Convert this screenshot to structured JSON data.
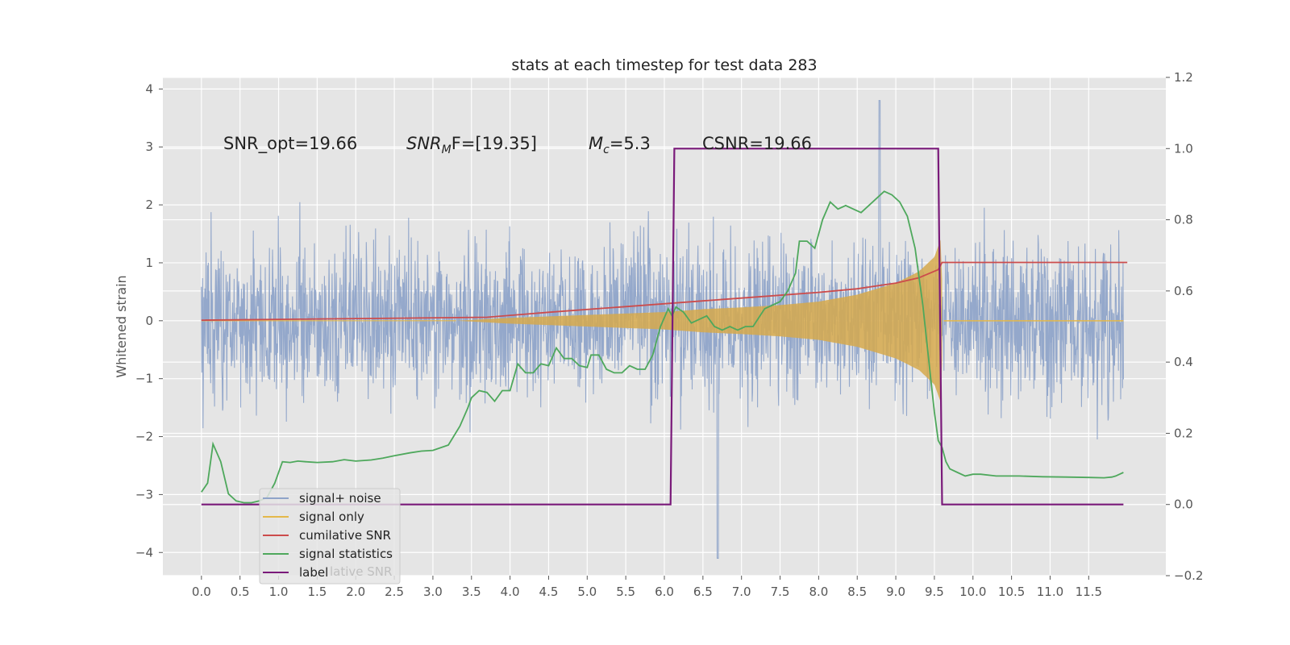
{
  "chart_data": {
    "type": "line",
    "title": "stats at each timestep for test data 283",
    "ylabel": "Whitened strain",
    "xlim": [
      -0.5,
      12.5
    ],
    "ylim": [
      -4.4,
      4.2
    ],
    "y2lim": [
      -0.2,
      1.2
    ],
    "grid": true,
    "x_ticks": [
      "0.0",
      "0.5",
      "1.0",
      "1.5",
      "2.0",
      "2.5",
      "3.0",
      "3.5",
      "4.0",
      "4.5",
      "5.0",
      "5.5",
      "6.0",
      "6.5",
      "7.0",
      "7.5",
      "8.0",
      "8.5",
      "9.0",
      "9.5",
      "10.0",
      "10.5",
      "11.0",
      "11.5"
    ],
    "y_ticks": [
      "4",
      "3",
      "2",
      "1",
      "0",
      "−1",
      "−2",
      "−3",
      "−4"
    ],
    "y2_ticks": [
      "1.2",
      "1.0",
      "0.8",
      "0.6",
      "0.4",
      "0.2",
      "0.0",
      "−0.2"
    ],
    "annotations": {
      "snr_opt": "SNR_opt=19.66",
      "snr_mf_prefix": "SNR",
      "snr_mf_sub": "M",
      "snr_mf_suffix": "F=[19.35]",
      "mc_prefix": "M",
      "mc_sub": "c",
      "mc_suffix": "=5.3",
      "csnr": "CSNR=19.66"
    },
    "legend": {
      "placement": "lower-left",
      "entries": [
        "signal+ noise",
        "signal only",
        "cumilative SNR",
        "signal statistics",
        "label"
      ],
      "overlapped_text": "lative SNR"
    },
    "series": [
      {
        "name": "signal+ noise",
        "axis": "left",
        "color": "#8fa4c9",
        "description": "whitened noisy strain, approx ±2 envelope, peaks near 3.8 at t≈8.8 and dip to −4.1 at t≈6.7"
      },
      {
        "name": "signal only",
        "axis": "left",
        "color": "#e4b84a",
        "envelope": {
          "t": [
            3.3,
            4.0,
            5.0,
            6.0,
            6.5,
            7.0,
            7.5,
            8.0,
            8.5,
            9.0,
            9.3,
            9.5,
            9.58,
            9.62,
            12.0
          ],
          "amp": [
            0.0,
            0.05,
            0.1,
            0.15,
            0.2,
            0.23,
            0.27,
            0.33,
            0.45,
            0.65,
            0.85,
            1.1,
            1.4,
            0.0,
            0.0
          ]
        }
      },
      {
        "name": "cumilative SNR",
        "axis": "right",
        "color": "#cc4c4c",
        "t": [
          0.0,
          3.7,
          4.5,
          5.5,
          6.5,
          7.5,
          8.0,
          8.5,
          9.0,
          9.3,
          9.55,
          9.6,
          12.0
        ],
        "values": [
          0.518,
          0.526,
          0.54,
          0.556,
          0.572,
          0.588,
          0.596,
          0.606,
          0.622,
          0.637,
          0.66,
          0.68,
          0.68
        ]
      },
      {
        "name": "signal statistics",
        "axis": "right",
        "color": "#4ea85c",
        "t": [
          0.0,
          0.08,
          0.15,
          0.25,
          0.35,
          0.45,
          0.55,
          0.65,
          0.75,
          0.85,
          0.95,
          1.05,
          1.15,
          1.25,
          1.35,
          1.5,
          1.7,
          1.85,
          2.0,
          2.2,
          2.35,
          2.5,
          2.7,
          2.85,
          3.0,
          3.2,
          3.35,
          3.45,
          3.5,
          3.6,
          3.7,
          3.8,
          3.9,
          4.0,
          4.1,
          4.2,
          4.3,
          4.4,
          4.5,
          4.6,
          4.7,
          4.8,
          4.9,
          5.0,
          5.05,
          5.15,
          5.25,
          5.35,
          5.45,
          5.55,
          5.65,
          5.75,
          5.85,
          5.95,
          6.05,
          6.1,
          6.15,
          6.25,
          6.35,
          6.45,
          6.55,
          6.65,
          6.75,
          6.85,
          6.95,
          7.05,
          7.15,
          7.3,
          7.4,
          7.5,
          7.6,
          7.7,
          7.75,
          7.85,
          7.95,
          8.05,
          8.15,
          8.25,
          8.35,
          8.45,
          8.55,
          8.65,
          8.75,
          8.85,
          8.95,
          9.05,
          9.15,
          9.25,
          9.35,
          9.45,
          9.5,
          9.55,
          9.6,
          9.65,
          9.7,
          9.8,
          9.9,
          10.0,
          10.1,
          10.3,
          10.6,
          10.9,
          11.2,
          11.5,
          11.7,
          11.8,
          11.85,
          11.9,
          11.95
        ],
        "values": [
          0.035,
          0.06,
          0.17,
          0.12,
          0.03,
          0.01,
          0.005,
          0.005,
          0.01,
          0.02,
          0.06,
          0.12,
          0.118,
          0.122,
          0.12,
          0.118,
          0.12,
          0.126,
          0.122,
          0.125,
          0.13,
          0.137,
          0.145,
          0.15,
          0.152,
          0.167,
          0.22,
          0.27,
          0.3,
          0.32,
          0.315,
          0.29,
          0.32,
          0.32,
          0.395,
          0.37,
          0.37,
          0.395,
          0.39,
          0.44,
          0.41,
          0.41,
          0.39,
          0.385,
          0.42,
          0.42,
          0.38,
          0.37,
          0.37,
          0.39,
          0.38,
          0.38,
          0.42,
          0.5,
          0.55,
          0.53,
          0.555,
          0.54,
          0.51,
          0.52,
          0.53,
          0.5,
          0.49,
          0.5,
          0.49,
          0.5,
          0.5,
          0.55,
          0.56,
          0.57,
          0.6,
          0.65,
          0.74,
          0.74,
          0.72,
          0.8,
          0.85,
          0.83,
          0.84,
          0.83,
          0.82,
          0.84,
          0.86,
          0.88,
          0.87,
          0.85,
          0.81,
          0.72,
          0.56,
          0.36,
          0.26,
          0.18,
          0.16,
          0.12,
          0.1,
          0.09,
          0.08,
          0.085,
          0.085,
          0.08,
          0.08,
          0.078,
          0.077,
          0.076,
          0.075,
          0.077,
          0.08,
          0.085,
          0.09
        ]
      },
      {
        "name": "label",
        "axis": "right",
        "color": "#7a1a7a",
        "t": [
          0.0,
          6.08,
          6.13,
          9.55,
          9.6,
          11.95
        ],
        "values": [
          0.0,
          0.0,
          1.0,
          1.0,
          0.0,
          0.0
        ]
      }
    ]
  }
}
